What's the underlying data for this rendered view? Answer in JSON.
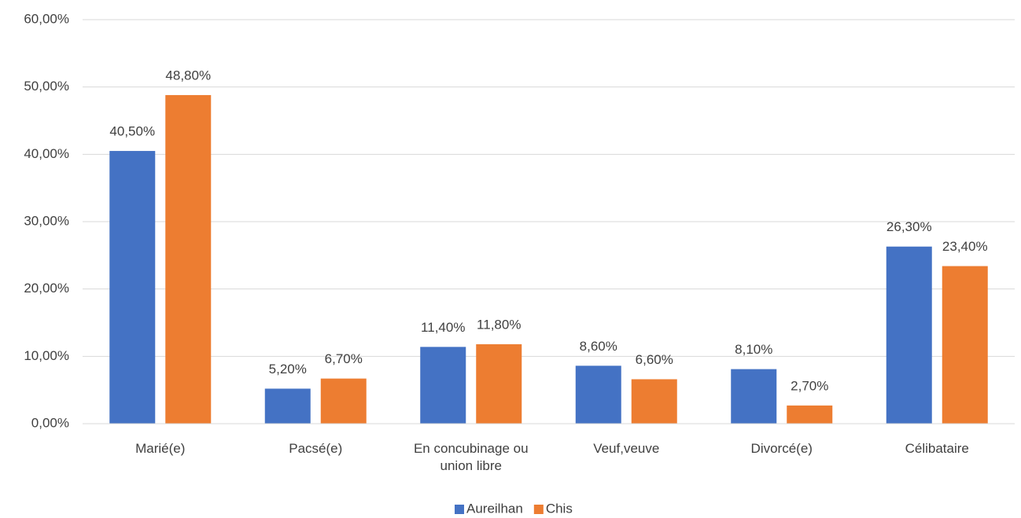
{
  "chart_data": {
    "type": "bar",
    "categories": [
      "Marié(e)",
      "Pacsé(e)",
      "En concubinage ou union libre",
      "Veuf,veuve",
      "Divorcé(e)",
      "Célibataire"
    ],
    "series": [
      {
        "name": "Aureilhan",
        "color": "#4472c4",
        "values": [
          40.5,
          5.2,
          11.4,
          8.6,
          8.1,
          26.3
        ],
        "value_labels": [
          "40,50%",
          "5,20%",
          "11,40%",
          "8,60%",
          "8,10%",
          "26,30%"
        ]
      },
      {
        "name": "Chis",
        "color": "#ed7d31",
        "values": [
          48.8,
          6.7,
          11.8,
          6.6,
          2.7,
          23.4
        ],
        "value_labels": [
          "48,80%",
          "6,70%",
          "11,80%",
          "6,60%",
          "2,70%",
          "23,40%"
        ]
      }
    ],
    "ylim": [
      0,
      60
    ],
    "yticks": [
      {
        "value": 0,
        "label": "0,00%"
      },
      {
        "value": 10,
        "label": "10,00%"
      },
      {
        "value": 20,
        "label": "20,00%"
      },
      {
        "value": 30,
        "label": "30,00%"
      },
      {
        "value": 40,
        "label": "40,00%"
      },
      {
        "value": 50,
        "label": "50,00%"
      },
      {
        "value": 60,
        "label": "60,00%"
      }
    ],
    "grid": true,
    "legend": "bottom"
  }
}
